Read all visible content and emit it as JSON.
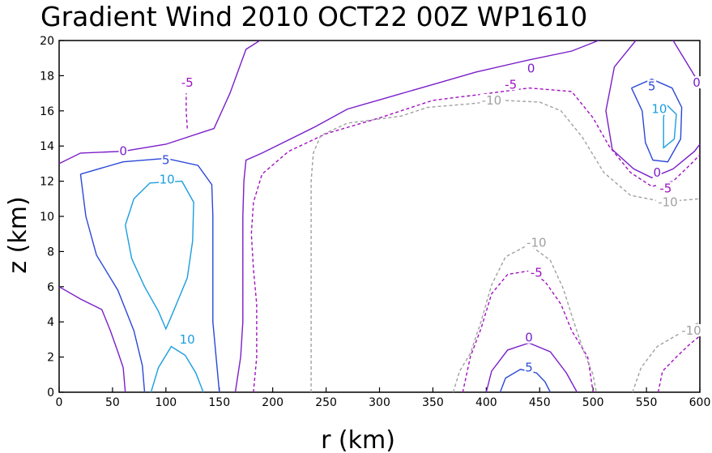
{
  "chart_data": {
    "type": "contour",
    "title": "Gradient Wind 2010 OCT22 00Z  WP1610",
    "xlabel": "r (km)",
    "ylabel": "z (km)",
    "xlim": [
      0,
      600
    ],
    "ylim": [
      0,
      20
    ],
    "x_ticks": [
      "0",
      "50",
      "100",
      "150",
      "200",
      "250",
      "300",
      "350",
      "400",
      "450",
      "500",
      "550",
      "600"
    ],
    "y_ticks": [
      "0",
      "2",
      "4",
      "6",
      "8",
      "10",
      "12",
      "14",
      "16",
      "18",
      "20"
    ],
    "grid": false,
    "colors": {
      "10": "#1a9ee0",
      "5": "#2a48d8",
      "0": "#7a1ec8",
      "-5": "#a010c0",
      "-10": "#a0a0a0"
    },
    "contours": [
      {
        "level": 0,
        "label": "0",
        "points": [
          [
            0,
            13
          ],
          [
            20,
            13.6
          ],
          [
            60,
            13.7
          ],
          [
            100,
            14.1
          ],
          [
            145,
            15
          ],
          [
            160,
            17
          ],
          [
            175,
            19.5
          ],
          [
            188,
            20
          ]
        ]
      },
      {
        "level": 0,
        "label": "0",
        "points": [
          [
            0,
            6
          ],
          [
            20,
            5.3
          ],
          [
            40,
            4.7
          ],
          [
            48,
            3.5
          ],
          [
            55,
            2.3
          ],
          [
            60,
            1.4
          ],
          [
            62,
            0
          ]
        ]
      },
      {
        "level": 0,
        "label": "0",
        "points": [
          [
            165,
            0
          ],
          [
            170,
            2
          ],
          [
            172,
            4
          ],
          [
            172,
            7
          ],
          [
            172,
            10
          ],
          [
            173,
            12
          ],
          [
            175,
            13.2
          ],
          [
            190,
            13.6
          ],
          [
            210,
            14.2
          ],
          [
            240,
            15.1
          ],
          [
            270,
            16.1
          ],
          [
            310,
            16.8
          ],
          [
            350,
            17.5
          ],
          [
            390,
            18.2
          ],
          [
            440,
            18.9
          ],
          [
            480,
            19.4
          ],
          [
            505,
            20
          ]
        ]
      },
      {
        "level": 0,
        "label": "0",
        "points": [
          [
            400,
            0
          ],
          [
            405,
            1.2
          ],
          [
            420,
            2.4
          ],
          [
            440,
            2.8
          ],
          [
            460,
            2.3
          ],
          [
            475,
            1.1
          ],
          [
            485,
            0
          ]
        ]
      },
      {
        "level": 0,
        "label": "0",
        "points": [
          [
            540,
            20
          ],
          [
            520,
            18.5
          ],
          [
            512,
            16
          ],
          [
            518,
            13.8
          ],
          [
            538,
            12.7
          ],
          [
            555,
            12.2
          ],
          [
            575,
            12.7
          ],
          [
            595,
            13.7
          ],
          [
            600,
            14.1
          ]
        ]
      },
      {
        "level": 0,
        "label": "0",
        "points": [
          [
            600,
            17.5
          ],
          [
            590,
            18.5
          ],
          [
            575,
            20
          ]
        ]
      },
      {
        "level": 5,
        "label": "5",
        "points": [
          [
            20,
            12.4
          ],
          [
            60,
            13.1
          ],
          [
            100,
            13.3
          ],
          [
            130,
            12.9
          ],
          [
            143,
            11.8
          ],
          [
            144,
            10
          ],
          [
            144,
            8
          ],
          [
            144,
            4
          ],
          [
            147,
            2
          ],
          [
            150,
            0
          ]
        ]
      },
      {
        "level": 5,
        "label": "5",
        "points": [
          [
            80,
            0
          ],
          [
            78,
            1.5
          ],
          [
            70,
            3.5
          ],
          [
            55,
            5.8
          ],
          [
            35,
            7.8
          ],
          [
            25,
            10
          ],
          [
            20,
            12.4
          ]
        ]
      },
      {
        "level": 5,
        "label": "5",
        "points": [
          [
            413,
            0
          ],
          [
            418,
            0.8
          ],
          [
            432,
            1.3
          ],
          [
            447,
            1.1
          ],
          [
            455,
            0.6
          ],
          [
            460,
            0
          ]
        ]
      },
      {
        "level": 5,
        "label": "5",
        "points": [
          [
            536,
            17.3
          ],
          [
            546,
            16
          ],
          [
            549,
            14.2
          ],
          [
            556,
            13.2
          ],
          [
            570,
            13.1
          ],
          [
            582,
            14.4
          ],
          [
            583,
            16.2
          ],
          [
            574,
            17.3
          ],
          [
            555,
            17.8
          ],
          [
            536,
            17.3
          ]
        ]
      },
      {
        "level": 10,
        "label": "10",
        "points": [
          [
            62,
            9.5
          ],
          [
            70,
            11
          ],
          [
            85,
            11.9
          ],
          [
            115,
            12
          ],
          [
            126,
            10.8
          ],
          [
            125,
            8.6
          ],
          [
            120,
            6.5
          ],
          [
            105,
            4.3
          ],
          [
            100,
            3.6
          ],
          [
            93,
            4.6
          ],
          [
            80,
            6
          ],
          [
            68,
            7.6
          ],
          [
            62,
            9.5
          ]
        ]
      },
      {
        "level": 10,
        "label": "10",
        "points": [
          [
            86,
            0
          ],
          [
            93,
            1.4
          ],
          [
            105,
            2.6
          ],
          [
            118,
            2.1
          ],
          [
            128,
            1.1
          ],
          [
            135,
            0
          ]
        ]
      },
      {
        "level": 10,
        "label": "10",
        "points": [
          [
            566,
            15.6
          ],
          [
            566,
            13.9
          ],
          [
            576,
            14.4
          ],
          [
            578,
            15.8
          ],
          [
            568,
            16.4
          ],
          [
            566,
            15.6
          ]
        ]
      },
      {
        "level": -5,
        "label": "-5",
        "points": [
          [
            120,
            15
          ],
          [
            119,
            16
          ],
          [
            119,
            17
          ]
        ]
      },
      {
        "level": -5,
        "label": "-5",
        "points": [
          [
            182,
            0
          ],
          [
            185,
            2
          ],
          [
            185,
            5
          ],
          [
            182,
            7
          ],
          [
            180,
            9
          ],
          [
            182,
            10.8
          ],
          [
            190,
            12.4
          ],
          [
            215,
            13.7
          ],
          [
            250,
            14.7
          ],
          [
            300,
            15.6
          ],
          [
            350,
            16.6
          ],
          [
            390,
            16.9
          ],
          [
            440,
            17.3
          ],
          [
            480,
            17.1
          ],
          [
            500,
            15.6
          ],
          [
            515,
            14
          ],
          [
            535,
            12.5
          ],
          [
            555,
            11.7
          ],
          [
            575,
            12
          ],
          [
            592,
            13
          ],
          [
            600,
            13.5
          ]
        ]
      },
      {
        "level": -5,
        "label": "-5",
        "points": [
          [
            378,
            0
          ],
          [
            385,
            2
          ],
          [
            395,
            3.6
          ],
          [
            405,
            5.6
          ],
          [
            420,
            6.7
          ],
          [
            440,
            6.9
          ],
          [
            455,
            6.3
          ],
          [
            470,
            5
          ],
          [
            480,
            3.5
          ],
          [
            495,
            2
          ],
          [
            500,
            0
          ]
        ]
      },
      {
        "level": -5,
        "label": "-5",
        "points": [
          [
            561,
            0
          ],
          [
            565,
            1.2
          ],
          [
            578,
            2
          ],
          [
            590,
            2.7
          ],
          [
            600,
            3.2
          ]
        ]
      },
      {
        "level": -10,
        "label": "-10",
        "points": [
          [
            236,
            0
          ],
          [
            236,
            4
          ],
          [
            236,
            8
          ],
          [
            236,
            12
          ],
          [
            238,
            13.6
          ],
          [
            245,
            14.6
          ],
          [
            270,
            15.3
          ],
          [
            320,
            15.7
          ],
          [
            345,
            16.2
          ],
          [
            385,
            16.4
          ],
          [
            415,
            16.6
          ],
          [
            450,
            16.5
          ],
          [
            470,
            16
          ],
          [
            490,
            14.5
          ],
          [
            510,
            12.5
          ],
          [
            535,
            11.2
          ],
          [
            560,
            10.9
          ],
          [
            580,
            10.9
          ],
          [
            600,
            11
          ]
        ]
      },
      {
        "level": -10,
        "label": "-10",
        "points": [
          [
            369,
            0
          ],
          [
            375,
            1.2
          ],
          [
            385,
            2.2
          ],
          [
            395,
            4
          ],
          [
            405,
            6.1
          ],
          [
            418,
            7.7
          ],
          [
            440,
            8.4
          ],
          [
            460,
            7.5
          ],
          [
            472,
            5.9
          ],
          [
            482,
            4
          ],
          [
            492,
            2.2
          ],
          [
            500,
            1
          ],
          [
            503,
            0
          ]
        ]
      },
      {
        "level": -10,
        "label": "-10",
        "points": [
          [
            537,
            0
          ],
          [
            545,
            1.4
          ],
          [
            560,
            2.6
          ],
          [
            580,
            3.3
          ],
          [
            600,
            4
          ]
        ]
      }
    ],
    "contour_labels": [
      {
        "text": "0",
        "x": 442,
        "y": 18.4,
        "level": 0
      },
      {
        "text": "0",
        "x": 60,
        "y": 13.7,
        "level": 0
      },
      {
        "text": "0",
        "x": 440,
        "y": 3.1,
        "level": 0
      },
      {
        "text": "0",
        "x": 560,
        "y": 12.5,
        "level": 0
      },
      {
        "text": "0",
        "x": 597,
        "y": 17.6,
        "level": 0
      },
      {
        "text": "5",
        "x": 100,
        "y": 13.2,
        "level": 5
      },
      {
        "text": "5",
        "x": 440,
        "y": 1.4,
        "level": 5
      },
      {
        "text": "5",
        "x": 555,
        "y": 17.4,
        "level": 5
      },
      {
        "text": "10",
        "x": 101,
        "y": 12.1,
        "level": 10
      },
      {
        "text": "10",
        "x": 120,
        "y": 3.0,
        "level": 10
      },
      {
        "text": "10",
        "x": 562,
        "y": 16.1,
        "level": 10
      },
      {
        "text": "-5",
        "x": 120,
        "y": 17.6,
        "level": -5
      },
      {
        "text": "-5",
        "x": 423,
        "y": 17.5,
        "level": -5
      },
      {
        "text": "-5",
        "x": 447,
        "y": 6.8,
        "level": -5
      },
      {
        "text": "-5",
        "x": 568,
        "y": 11.6,
        "level": -5
      },
      {
        "text": "-10",
        "x": 405,
        "y": 16.6,
        "level": -10
      },
      {
        "text": "-10",
        "x": 447,
        "y": 8.5,
        "level": -10
      },
      {
        "text": "-10",
        "x": 570,
        "y": 10.8,
        "level": -10
      },
      {
        "text": "-10",
        "x": 592,
        "y": 3.5,
        "level": -10
      }
    ]
  }
}
